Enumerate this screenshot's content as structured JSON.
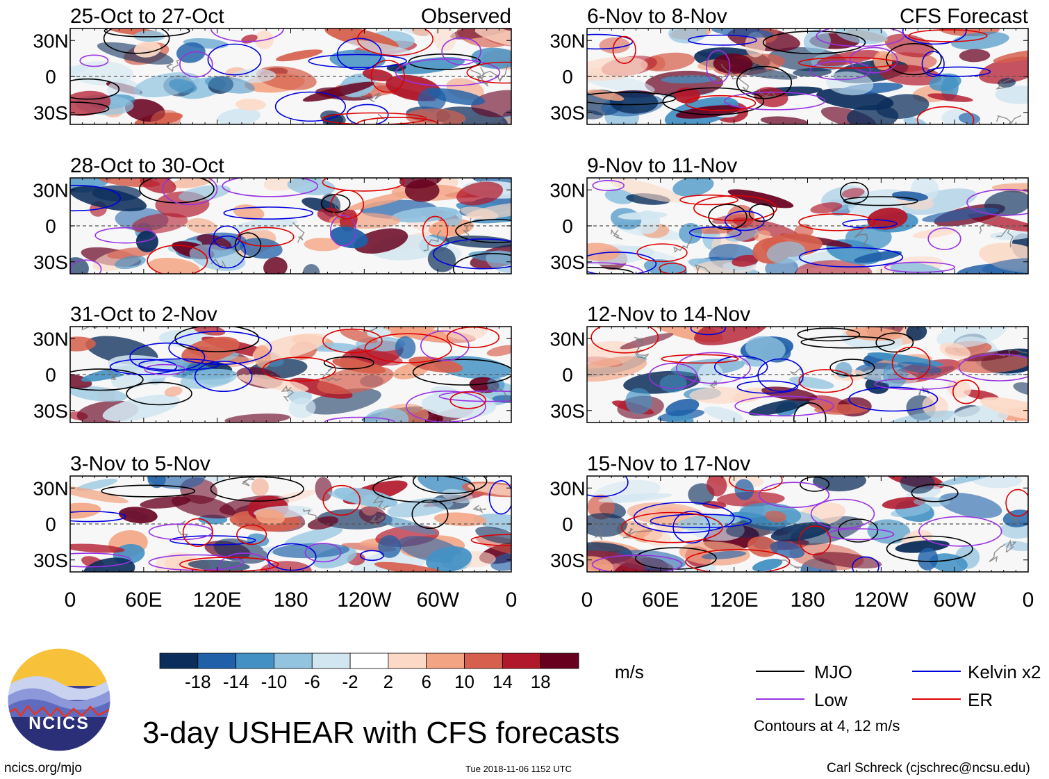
{
  "chart_data": {
    "type": "heatmap",
    "title": "3-day USHEAR with CFS forecasts",
    "variable": "USHEAR",
    "units": "m/s",
    "colorbar": {
      "ticks": [
        "-18",
        "-14",
        "-10",
        "-6",
        "-2",
        "2",
        "6",
        "10",
        "14",
        "18"
      ],
      "colors": [
        "#0b2d5b",
        "#1f60a8",
        "#4391c4",
        "#92c3df",
        "#d2e6f1",
        "#ffffff",
        "#fcd9c6",
        "#f3a483",
        "#d6604d",
        "#b2182b",
        "#67001f"
      ]
    },
    "x_axis": {
      "ticks": [
        "0",
        "60E",
        "120E",
        "180",
        "120W",
        "60W",
        "0"
      ],
      "range": [
        0,
        360
      ]
    },
    "y_axis": {
      "ticks": [
        "30N",
        "0",
        "30S"
      ],
      "range": [
        -40,
        40
      ]
    },
    "left_column_label": "Observed",
    "right_column_label": "CFS Forecast",
    "panels": [
      {
        "period": "25-Oct to 27-Oct",
        "source": "Observed"
      },
      {
        "period": "28-Oct to 30-Oct",
        "source": "Observed"
      },
      {
        "period": "31-Oct to 2-Nov",
        "source": "Observed"
      },
      {
        "period": "3-Nov to 5-Nov",
        "source": "Observed"
      },
      {
        "period": "6-Nov to 8-Nov",
        "source": "CFS Forecast"
      },
      {
        "period": "9-Nov to 11-Nov",
        "source": "CFS Forecast"
      },
      {
        "period": "12-Nov to 14-Nov",
        "source": "CFS Forecast"
      },
      {
        "period": "15-Nov to 17-Nov",
        "source": "CFS Forecast"
      }
    ],
    "contour_legend": [
      {
        "name": "MJO",
        "color": "#000000"
      },
      {
        "name": "Kelvin x2",
        "color": "#0000dd"
      },
      {
        "name": "Low",
        "color": "#9932e0"
      },
      {
        "name": "ER",
        "color": "#dd0000"
      }
    ],
    "contour_note": "Contours at 4, 12 m/s"
  },
  "logo": {
    "text": "NCICS"
  },
  "footer": {
    "url": "ncics.org/mjo",
    "timestamp": "Tue 2018-11-06 1152 UTC",
    "credit": "Carl Schreck (cjschrec@ncsu.edu)"
  }
}
